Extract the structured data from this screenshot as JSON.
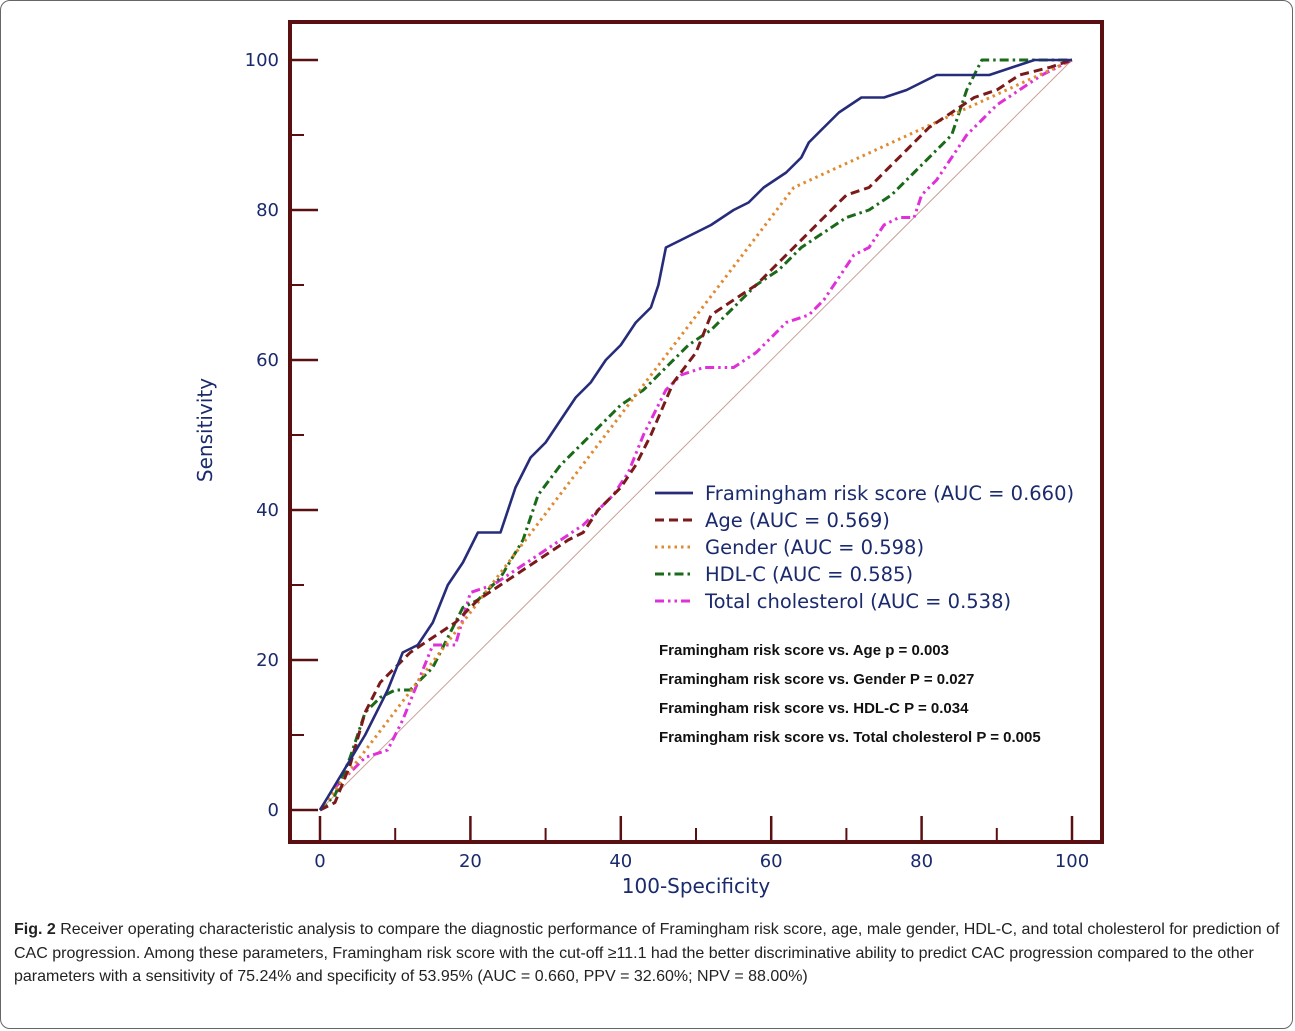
{
  "chart_data": {
    "type": "line",
    "xlabel": "100-Specificity",
    "ylabel": "Sensitivity",
    "xlim": [
      0,
      100
    ],
    "ylim": [
      0,
      100
    ],
    "x_ticks": [
      "0",
      "20",
      "40",
      "60",
      "80",
      "100"
    ],
    "y_ticks": [
      "0",
      "20",
      "40",
      "60",
      "80",
      "100"
    ],
    "legend_position": "lower-right",
    "reference_line": {
      "from": [
        0,
        0
      ],
      "to": [
        100,
        100
      ],
      "color": "#c8a09a"
    },
    "series": [
      {
        "name": "Framingham risk score (AUC = 0.660)",
        "color": "#262c7a",
        "dash": "solid",
        "points": [
          [
            0,
            0
          ],
          [
            3,
            5
          ],
          [
            6,
            10
          ],
          [
            9,
            16
          ],
          [
            11,
            21
          ],
          [
            13,
            22
          ],
          [
            15,
            25
          ],
          [
            17,
            30
          ],
          [
            19,
            33
          ],
          [
            21,
            37
          ],
          [
            24,
            37
          ],
          [
            26,
            43
          ],
          [
            28,
            47
          ],
          [
            30,
            49
          ],
          [
            32,
            52
          ],
          [
            34,
            55
          ],
          [
            36,
            57
          ],
          [
            38,
            60
          ],
          [
            40,
            62
          ],
          [
            42,
            65
          ],
          [
            44,
            67
          ],
          [
            45,
            70
          ],
          [
            46,
            75
          ],
          [
            48,
            76
          ],
          [
            50,
            77
          ],
          [
            52,
            78
          ],
          [
            55,
            80
          ],
          [
            57,
            81
          ],
          [
            59,
            83
          ],
          [
            62,
            85
          ],
          [
            64,
            87
          ],
          [
            65,
            89
          ],
          [
            67,
            91
          ],
          [
            69,
            93
          ],
          [
            72,
            95
          ],
          [
            75,
            95
          ],
          [
            78,
            96
          ],
          [
            82,
            98
          ],
          [
            86,
            98
          ],
          [
            89,
            98
          ],
          [
            92,
            99
          ],
          [
            95,
            100
          ],
          [
            100,
            100
          ]
        ]
      },
      {
        "name": "Age (AUC = 0.569)",
        "color": "#7a1a1a",
        "dash": "dash",
        "points": [
          [
            0,
            0
          ],
          [
            2,
            1
          ],
          [
            4,
            6
          ],
          [
            6,
            13
          ],
          [
            8,
            17
          ],
          [
            10,
            19
          ],
          [
            12,
            21
          ],
          [
            15,
            23
          ],
          [
            18,
            25
          ],
          [
            21,
            28
          ],
          [
            24,
            30
          ],
          [
            27,
            32
          ],
          [
            30,
            34
          ],
          [
            33,
            36
          ],
          [
            35,
            37
          ],
          [
            37,
            40
          ],
          [
            40,
            43
          ],
          [
            42,
            46
          ],
          [
            44,
            50
          ],
          [
            47,
            57
          ],
          [
            50,
            61
          ],
          [
            52,
            66
          ],
          [
            55,
            68
          ],
          [
            58,
            70
          ],
          [
            61,
            73
          ],
          [
            64,
            76
          ],
          [
            67,
            79
          ],
          [
            70,
            82
          ],
          [
            73,
            83
          ],
          [
            75,
            85
          ],
          [
            78,
            88
          ],
          [
            81,
            91
          ],
          [
            84,
            93
          ],
          [
            87,
            95
          ],
          [
            90,
            96
          ],
          [
            93,
            98
          ],
          [
            97,
            99
          ],
          [
            100,
            100
          ]
        ]
      },
      {
        "name": "Gender (AUC = 0.598)",
        "color": "#e08a30",
        "dash": "dot",
        "points": [
          [
            0,
            0
          ],
          [
            63,
            83
          ],
          [
            100,
            100
          ]
        ]
      },
      {
        "name": "HDL-C (AUC = 0.585)",
        "color": "#1a6a1a",
        "dash": "dashdot",
        "points": [
          [
            0,
            0
          ],
          [
            2,
            2
          ],
          [
            4,
            7
          ],
          [
            6,
            13
          ],
          [
            8,
            15
          ],
          [
            10,
            16
          ],
          [
            12,
            16
          ],
          [
            15,
            19
          ],
          [
            17,
            23
          ],
          [
            19,
            27
          ],
          [
            21,
            28
          ],
          [
            24,
            31
          ],
          [
            27,
            36
          ],
          [
            29,
            42
          ],
          [
            32,
            46
          ],
          [
            35,
            49
          ],
          [
            38,
            52
          ],
          [
            40,
            54
          ],
          [
            43,
            56
          ],
          [
            46,
            59
          ],
          [
            49,
            62
          ],
          [
            52,
            64
          ],
          [
            55,
            67
          ],
          [
            58,
            70
          ],
          [
            61,
            72
          ],
          [
            64,
            75
          ],
          [
            67,
            77
          ],
          [
            70,
            79
          ],
          [
            73,
            80
          ],
          [
            76,
            82
          ],
          [
            79,
            85
          ],
          [
            82,
            88
          ],
          [
            84,
            90
          ],
          [
            86,
            96
          ],
          [
            88,
            100
          ],
          [
            93,
            100
          ],
          [
            100,
            100
          ]
        ]
      },
      {
        "name": "Total cholesterol (AUC = 0.538)",
        "color": "#e030d8",
        "dash": "dashdotdot",
        "points": [
          [
            0,
            0
          ],
          [
            2,
            3
          ],
          [
            4,
            5
          ],
          [
            6,
            7
          ],
          [
            9,
            8
          ],
          [
            11,
            12
          ],
          [
            13,
            17
          ],
          [
            15,
            22
          ],
          [
            18,
            22
          ],
          [
            20,
            29
          ],
          [
            23,
            30
          ],
          [
            26,
            32
          ],
          [
            29,
            34
          ],
          [
            32,
            36
          ],
          [
            35,
            38
          ],
          [
            37,
            40
          ],
          [
            39,
            42
          ],
          [
            41,
            45
          ],
          [
            43,
            50
          ],
          [
            46,
            56
          ],
          [
            48,
            58
          ],
          [
            51,
            59
          ],
          [
            55,
            59
          ],
          [
            58,
            61
          ],
          [
            60,
            63
          ],
          [
            62,
            65
          ],
          [
            65,
            66
          ],
          [
            67,
            68
          ],
          [
            69,
            71
          ],
          [
            71,
            74
          ],
          [
            73,
            75
          ],
          [
            75,
            78
          ],
          [
            77,
            79
          ],
          [
            79,
            79
          ],
          [
            80,
            82
          ],
          [
            82,
            84
          ],
          [
            84,
            87
          ],
          [
            86,
            90
          ],
          [
            88,
            92
          ],
          [
            90,
            94
          ],
          [
            93,
            96
          ],
          [
            96,
            98
          ],
          [
            100,
            100
          ]
        ]
      }
    ],
    "annotations": [
      "Framingham risk score vs. Age p = 0.003",
      "Framingham risk score vs. Gender P = 0.027",
      "Framingham risk score vs. HDL-C P = 0.034",
      "Framingham risk score vs. Total cholesterol P = 0.005"
    ],
    "frame_color": "#5a1010"
  },
  "caption": {
    "label": "Fig. 2",
    "text": " Receiver operating characteristic analysis to compare the diagnostic performance of Framingham risk score, age, male gender, HDL-C, and total cholesterol for prediction of CAC progression. Among these parameters, Framingham risk score with the cut-off ≥11.1 had the better discriminative ability to predict CAC progression compared to the other parameters with a sensitivity of 75.24% and specificity of 53.95% (AUC = 0.660, PPV = 32.60%; NPV = 88.00%)"
  }
}
